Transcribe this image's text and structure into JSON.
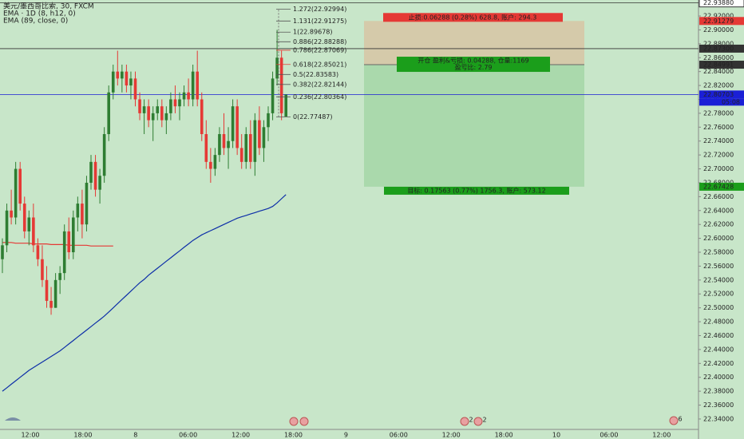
{
  "chart_data": {
    "type": "candlestick",
    "legend": [
      "美元/墨西哥比索, 30, FXCM",
      "EMA · 1D (8, h12, 0)",
      "EMA (89, close, 0)"
    ],
    "up_color": "#2e7d32",
    "down_color": "#e53935",
    "open": [
      22.57,
      22.59,
      22.64,
      22.63,
      22.7,
      22.65,
      22.61,
      22.63,
      22.59,
      22.57,
      22.54,
      22.51,
      22.5,
      22.54,
      22.55,
      22.61,
      22.58,
      22.63,
      22.65,
      22.62,
      22.68,
      22.71,
      22.67,
      22.69,
      22.75,
      22.81,
      22.84,
      22.83,
      22.84,
      22.82,
      22.83,
      22.8,
      22.78,
      22.79,
      22.77,
      22.78,
      22.79,
      22.77,
      22.78,
      22.8,
      22.79,
      22.8,
      22.81,
      22.8,
      22.84,
      22.8,
      22.75,
      22.71,
      22.7,
      22.72,
      22.75,
      22.73,
      22.74,
      22.79,
      22.73,
      22.71,
      22.75,
      22.71,
      22.77,
      22.73,
      22.76,
      22.78,
      22.83,
      22.86,
      22.7749
    ],
    "high": [
      22.6,
      22.65,
      22.67,
      22.71,
      22.71,
      22.66,
      22.64,
      22.65,
      22.6,
      22.59,
      22.56,
      22.53,
      22.55,
      22.56,
      22.62,
      22.63,
      22.64,
      22.66,
      22.67,
      22.69,
      22.72,
      22.72,
      22.7,
      22.76,
      22.82,
      22.85,
      22.87,
      22.85,
      22.85,
      22.84,
      22.84,
      22.81,
      22.8,
      22.8,
      22.79,
      22.8,
      22.8,
      22.79,
      22.81,
      22.82,
      22.81,
      22.82,
      22.83,
      22.85,
      22.87,
      22.81,
      22.77,
      22.73,
      22.73,
      22.76,
      22.78,
      22.76,
      22.8,
      22.8,
      22.75,
      22.76,
      22.77,
      22.78,
      22.79,
      22.77,
      22.79,
      22.84,
      22.9,
      22.87,
      22.805
    ],
    "low": [
      22.55,
      22.58,
      22.62,
      22.62,
      22.64,
      22.6,
      22.59,
      22.58,
      22.56,
      22.53,
      22.5,
      22.49,
      22.5,
      22.52,
      22.54,
      22.57,
      22.57,
      22.61,
      22.6,
      22.61,
      22.67,
      22.66,
      22.65,
      22.68,
      22.74,
      22.8,
      22.82,
      22.81,
      22.81,
      22.8,
      22.79,
      22.77,
      22.75,
      22.76,
      22.74,
      22.77,
      22.76,
      22.75,
      22.77,
      22.78,
      22.77,
      22.79,
      22.79,
      22.79,
      22.79,
      22.74,
      22.7,
      22.68,
      22.69,
      22.71,
      22.72,
      22.7,
      22.73,
      22.72,
      22.7,
      22.7,
      22.7,
      22.69,
      22.72,
      22.71,
      22.74,
      22.77,
      22.82,
      22.77,
      22.7749
    ],
    "close": [
      22.59,
      22.64,
      22.63,
      22.7,
      22.65,
      22.61,
      22.63,
      22.59,
      22.57,
      22.54,
      22.51,
      22.5,
      22.54,
      22.55,
      22.61,
      22.58,
      22.63,
      22.65,
      22.62,
      22.68,
      22.71,
      22.67,
      22.69,
      22.75,
      22.81,
      22.84,
      22.83,
      22.84,
      22.82,
      22.83,
      22.8,
      22.78,
      22.79,
      22.77,
      22.78,
      22.79,
      22.77,
      22.78,
      22.8,
      22.79,
      22.8,
      22.81,
      22.8,
      22.84,
      22.8,
      22.75,
      22.71,
      22.7,
      22.72,
      22.75,
      22.73,
      22.74,
      22.79,
      22.73,
      22.71,
      22.75,
      22.71,
      22.77,
      22.73,
      22.76,
      22.78,
      22.83,
      22.86,
      22.78,
      22.80703
    ],
    "series": [
      {
        "name": "EMA · 1D (8, h12, 0)",
        "color": "#e53935",
        "values": [
          22.594,
          22.594,
          22.594,
          22.593,
          22.593,
          22.593,
          22.593,
          22.592,
          22.592,
          22.592,
          22.592,
          22.591,
          22.591,
          22.591,
          22.591,
          22.59,
          22.59,
          22.59,
          22.59,
          22.59,
          22.589,
          22.589,
          22.589,
          22.589,
          22.589,
          22.589,
          null,
          null,
          null,
          null,
          null,
          null,
          null,
          null,
          null,
          null,
          null,
          null,
          null,
          null,
          null,
          null,
          null,
          null,
          null,
          null,
          null,
          null,
          null,
          null,
          null,
          null,
          null,
          null,
          null,
          null,
          null,
          null,
          null,
          null,
          null,
          null,
          null,
          null,
          null
        ]
      },
      {
        "name": "EMA (89, close, 0)",
        "color": "#0d2ea8",
        "values": [
          22.38,
          22.385,
          22.39,
          22.395,
          22.4,
          22.405,
          22.41,
          22.414,
          22.418,
          22.422,
          22.426,
          22.43,
          22.434,
          22.438,
          22.443,
          22.448,
          22.453,
          22.458,
          22.463,
          22.468,
          22.473,
          22.478,
          22.483,
          22.488,
          22.494,
          22.5,
          22.506,
          22.512,
          22.518,
          22.524,
          22.53,
          22.536,
          22.541,
          22.547,
          22.552,
          22.557,
          22.562,
          22.567,
          22.572,
          22.577,
          22.582,
          22.587,
          22.592,
          22.597,
          22.601,
          22.605,
          22.608,
          22.611,
          22.614,
          22.617,
          22.62,
          22.623,
          22.626,
          22.629,
          22.631,
          22.633,
          22.635,
          22.637,
          22.639,
          22.641,
          22.643,
          22.646,
          22.651,
          22.657,
          22.663
        ]
      }
    ],
    "ylim": [
      22.325,
      22.943
    ],
    "yticks": [
      {
        "value": 22.92,
        "label": "22.92000"
      },
      {
        "value": 22.9,
        "label": "22.90000"
      },
      {
        "value": 22.88,
        "label": "22.88000"
      },
      {
        "value": 22.86,
        "label": "22.86000"
      },
      {
        "value": 22.84,
        "label": "22.84000"
      },
      {
        "value": 22.82,
        "label": "22.82000"
      },
      {
        "value": 22.8,
        "label": "22.80000"
      },
      {
        "value": 22.78,
        "label": "22.78000"
      },
      {
        "value": 22.76,
        "label": "22.76000"
      },
      {
        "value": 22.74,
        "label": "22.74000"
      },
      {
        "value": 22.72,
        "label": "22.72000"
      },
      {
        "value": 22.7,
        "label": "22.70000"
      },
      {
        "value": 22.68,
        "label": "22.68000"
      },
      {
        "value": 22.66,
        "label": "22.66000"
      },
      {
        "value": 22.64,
        "label": "22.64000"
      },
      {
        "value": 22.62,
        "label": "22.62000"
      },
      {
        "value": 22.6,
        "label": "22.60000"
      },
      {
        "value": 22.58,
        "label": "22.58000"
      },
      {
        "value": 22.56,
        "label": "22.56000"
      },
      {
        "value": 22.54,
        "label": "22.54000"
      },
      {
        "value": 22.52,
        "label": "22.52000"
      },
      {
        "value": 22.5,
        "label": "22.50000"
      },
      {
        "value": 22.48,
        "label": "22.48000"
      },
      {
        "value": 22.46,
        "label": "22.46000"
      },
      {
        "value": 22.44,
        "label": "22.44000"
      },
      {
        "value": 22.42,
        "label": "22.42000"
      },
      {
        "value": 22.4,
        "label": "22.40000"
      },
      {
        "value": 22.38,
        "label": "22.38000"
      },
      {
        "value": 22.36,
        "label": "22.36000"
      },
      {
        "value": 22.34,
        "label": "22.34000"
      }
    ],
    "price_labels": [
      {
        "value": 22.9388,
        "label": "22.93880",
        "color": "#ffffff",
        "line": "#333333"
      },
      {
        "value": 22.91279,
        "label": "22.91279",
        "color": "#e53935"
      },
      {
        "value": 22.873,
        "label": "22.87300",
        "color": "#333333",
        "line": "#333333"
      },
      {
        "value": 22.84991,
        "label": "22.84991",
        "color": "#333333"
      },
      {
        "value": 22.80703,
        "label": "22.80703",
        "color": "#1a1fd6",
        "line": "#1a1fd6",
        "sub": "05:08"
      },
      {
        "value": 22.67428,
        "label": "22.67428",
        "color": "#1b9e1b"
      }
    ],
    "fib_levels": [
      {
        "value": 22.92994,
        "label": "1.272(22.92994)",
        "color": "#555555"
      },
      {
        "value": 22.91275,
        "label": "1.131(22.91275)",
        "color": "#555555"
      },
      {
        "value": 22.89678,
        "label": "1(22.89678)",
        "color": "#555555"
      },
      {
        "value": 22.88288,
        "label": "0.886(22.88288)",
        "color": "#555555"
      },
      {
        "value": 22.87069,
        "label": "0.786(22.87069)",
        "color": "#e53935"
      },
      {
        "value": 22.85021,
        "label": "0.618(22.85021)",
        "color": "#e53935"
      },
      {
        "value": 22.83583,
        "label": "0.5(22.83583)",
        "color": "#555555"
      },
      {
        "value": 22.82144,
        "label": "0.382(22.82144)",
        "color": "#555555"
      },
      {
        "value": 22.80364,
        "label": "0.236(22.80364)",
        "color": "#555555"
      },
      {
        "value": 22.77487,
        "label": "0(22.77487)",
        "color": "#555555"
      }
    ],
    "position": {
      "stop": 22.91279,
      "entry": 22.84991,
      "target": 22.67428,
      "stop_label": "止损:0.06288 (0.28%) 628.8, 账户: 294.3",
      "entry_label": [
        "开仓 盈利&亏损: 0.04288, 仓量:1169",
        "盈亏比: 2.79"
      ],
      "target_label": "目标: 0.17563 (0.77%) 1756.3, 账户: 573.12"
    },
    "time_labels": [
      "12:00",
      "18:00",
      "8",
      "06:00",
      "12:00",
      "18:00",
      "9",
      "06:00",
      "12:00",
      "18:00",
      "10",
      "06:00",
      "12:00"
    ],
    "event_badges": [
      "2",
      "2",
      "6"
    ]
  }
}
